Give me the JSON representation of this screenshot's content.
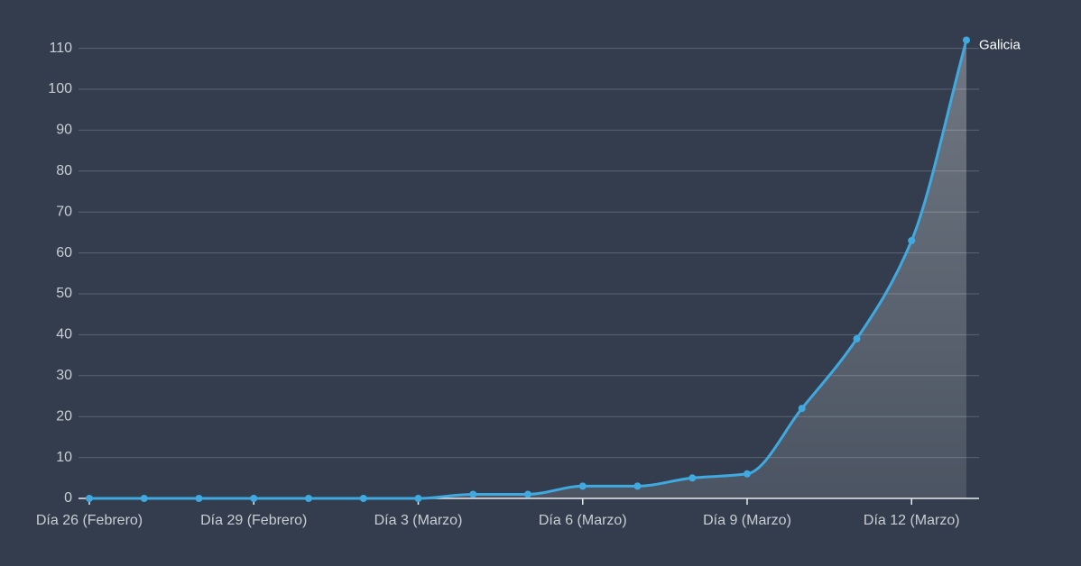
{
  "chart_data": {
    "type": "line",
    "categories": [
      "Día 26 (Febrero)",
      null,
      null,
      "Día 29 (Febrero)",
      null,
      null,
      "Día 3 (Marzo)",
      null,
      null,
      "Día 6 (Marzo)",
      null,
      null,
      "Día 9 (Marzo)",
      null,
      null,
      "Día 12 (Marzo)",
      null
    ],
    "series": [
      {
        "name": "Galicia",
        "color": "#3fa9e0",
        "values": [
          0,
          0,
          0,
          0,
          0,
          0,
          0,
          1,
          1,
          3,
          3,
          5,
          6,
          22,
          39,
          63,
          112
        ]
      }
    ],
    "ylim": [
      0,
      112
    ],
    "yticks": [
      0,
      10,
      20,
      30,
      40,
      50,
      60,
      70,
      80,
      90,
      100,
      110
    ],
    "grid": true,
    "area": true
  }
}
